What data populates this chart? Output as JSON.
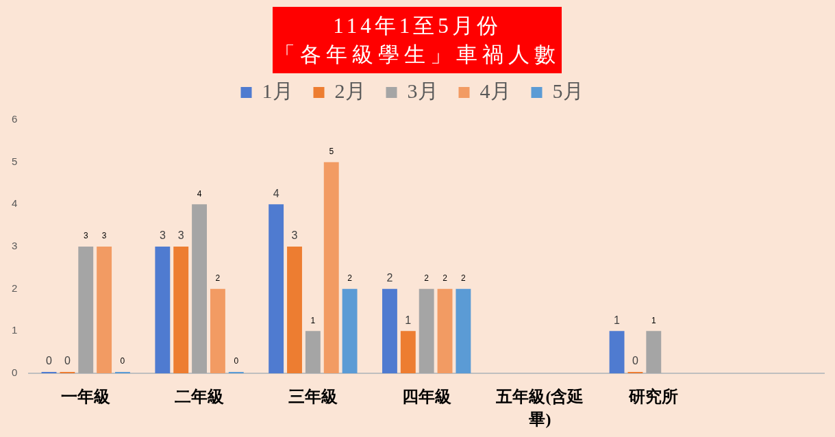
{
  "chart_data": {
    "type": "bar",
    "title": "114年1至5月份",
    "subtitle": "「各年級學生」車禍人數",
    "categories": [
      "一年級",
      "二年級",
      "三年級",
      "四年級",
      "五年級(含延畢)",
      "研究所",
      null
    ],
    "series": [
      {
        "name": "1月",
        "color": "#4f7bd0",
        "values": [
          0,
          3,
          4,
          2,
          null,
          1,
          null
        ]
      },
      {
        "name": "2月",
        "color": "#ed7d31",
        "values": [
          0,
          3,
          3,
          1,
          null,
          0,
          null
        ]
      },
      {
        "name": "3月",
        "color": "#a5a5a5",
        "values": [
          3,
          4,
          1,
          2,
          null,
          1,
          null
        ]
      },
      {
        "name": "4月",
        "color": "#f29b63",
        "values": [
          3,
          2,
          5,
          2,
          null,
          null,
          null
        ]
      },
      {
        "name": "5月",
        "color": "#5b9bd5",
        "values": [
          0,
          0,
          2,
          2,
          null,
          null,
          null
        ]
      }
    ],
    "ylim": [
      0,
      6
    ],
    "yticks": [
      0,
      1,
      2,
      3,
      4,
      5,
      6
    ],
    "legend": "top",
    "data_labels": true
  }
}
